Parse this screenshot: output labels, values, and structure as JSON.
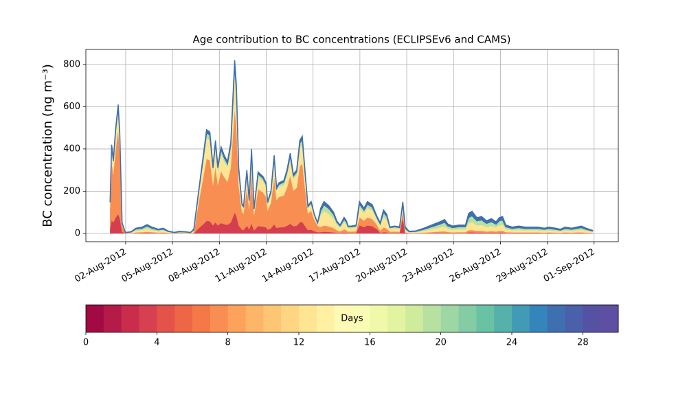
{
  "chart_data": {
    "type": "stacked-area",
    "title": "Age contribution to BC concentrations (ECLIPSEv6 and CAMS)",
    "y_label": "BC concentration (ng m⁻³)",
    "x": [
      1.0,
      1.1,
      1.21,
      1.36,
      1.52,
      1.62,
      1.77,
      1.98,
      2.34,
      2.65,
      3.06,
      3.37,
      3.68,
      4.09,
      4.4,
      4.71,
      5.12,
      5.43,
      5.84,
      6.15,
      6.36,
      6.67,
      6.97,
      7.18,
      7.39,
      7.59,
      7.75,
      7.9,
      8.11,
      8.31,
      8.52,
      8.73,
      8.98,
      9.09,
      9.24,
      9.45,
      9.55,
      9.76,
      9.91,
      10.06,
      10.22,
      10.48,
      10.79,
      10.99,
      11.09,
      11.3,
      11.51,
      11.66,
      11.82,
      12.13,
      12.33,
      12.54,
      12.74,
      12.95,
      13.15,
      13.31,
      13.46,
      13.67,
      13.88,
      14.08,
      14.29,
      14.49,
      14.7,
      15.01,
      15.32,
      15.52,
      15.73,
      15.99,
      16.14,
      16.24,
      16.45,
      16.76,
      16.97,
      17.27,
      17.48,
      17.79,
      18.1,
      18.3,
      18.51,
      18.72,
      18.92,
      19.23,
      19.54,
      19.75,
      19.9,
      20.16,
      20.57,
      21.09,
      21.6,
      22.12,
      22.43,
      22.63,
      22.94,
      23.35,
      23.76,
      23.97,
      24.18,
      24.49,
      24.8,
      25.11,
      25.42,
      25.72,
      25.93,
      26.14,
      26.34,
      26.75,
      27.17,
      27.58,
      27.99,
      28.4,
      28.81,
      29.12,
      29.53,
      29.84,
      30.15,
      30.56,
      30.87,
      31.18,
      31.49,
      31.9
    ],
    "series": [
      {
        "color": "#d53e4f",
        "values": [
          22,
          63,
          52,
          75,
          92,
          72,
          8,
          0,
          0,
          1,
          2,
          2,
          2,
          1,
          1,
          1,
          0,
          0,
          0,
          0,
          1,
          24,
          44,
          59,
          58,
          38,
          53,
          38,
          49,
          44,
          41,
          52,
          98,
          84,
          37,
          17,
          16,
          36,
          19,
          48,
          14,
          35,
          32,
          29,
          18,
          24,
          44,
          26,
          29,
          30,
          36,
          46,
          34,
          36,
          53,
          55,
          38,
          16,
          18,
          11,
          6,
          6,
          8,
          7,
          5,
          3,
          2,
          4,
          3,
          2,
          2,
          2,
          38,
          30,
          38,
          34,
          20,
          3,
          6,
          5,
          2,
          2,
          2,
          75,
          2,
          1,
          1,
          1,
          2,
          3,
          3,
          2,
          2,
          2,
          2,
          5,
          5,
          4,
          4,
          3,
          4,
          3,
          4,
          4,
          2,
          2,
          2,
          2,
          2,
          2,
          1,
          2,
          1,
          1,
          2,
          1,
          2,
          2,
          1,
          1
        ]
      },
      {
        "color": "#f98e52",
        "values": [
          98,
          273,
          228,
          325,
          396,
          312,
          32,
          1,
          1,
          4,
          4,
          6,
          4,
          3,
          4,
          2,
          1,
          2,
          1,
          1,
          3,
          120,
          222,
          294,
          288,
          192,
          264,
          192,
          246,
          222,
          204,
          258,
          492,
          420,
          186,
          84,
          78,
          180,
          96,
          240,
          72,
          174,
          162,
          144,
          90,
          120,
          222,
          132,
          144,
          150,
          180,
          228,
          168,
          180,
          264,
          276,
          192,
          78,
          90,
          54,
          30,
          24,
          30,
          26,
          20,
          12,
          8,
          15,
          12,
          7,
          7,
          8,
          38,
          30,
          38,
          34,
          20,
          10,
          22,
          18,
          6,
          7,
          6,
          30,
          3,
          1,
          1,
          3,
          4,
          6,
          7,
          5,
          3,
          4,
          4,
          10,
          11,
          8,
          8,
          6,
          7,
          6,
          8,
          8,
          4,
          3,
          3,
          3,
          3,
          3,
          3,
          3,
          3,
          2,
          3,
          3,
          3,
          3,
          3,
          1
        ]
      },
      {
        "color": "#fee593",
        "values": [
          22,
          63,
          52,
          75,
          92,
          72,
          8,
          2,
          3,
          9,
          10,
          15,
          10,
          7,
          9,
          4,
          2,
          3,
          3,
          2,
          7,
          40,
          74,
          98,
          96,
          64,
          88,
          64,
          82,
          74,
          68,
          86,
          164,
          140,
          62,
          28,
          26,
          60,
          32,
          80,
          24,
          58,
          54,
          48,
          30,
          40,
          74,
          44,
          48,
          50,
          60,
          76,
          56,
          60,
          88,
          92,
          64,
          26,
          30,
          18,
          10,
          54,
          68,
          59,
          45,
          27,
          18,
          34,
          27,
          16,
          16,
          18,
          45,
          36,
          45,
          41,
          24,
          23,
          50,
          41,
          14,
          16,
          14,
          30,
          11,
          3,
          4,
          9,
          14,
          19,
          23,
          16,
          12,
          14,
          14,
          33,
          37,
          26,
          28,
          21,
          24,
          19,
          26,
          28,
          14,
          10,
          12,
          10,
          10,
          10,
          9,
          10,
          9,
          7,
          10,
          9,
          10,
          12,
          9,
          5
        ]
      },
      {
        "color": "#b7e1a1",
        "values": [
          5,
          13,
          11,
          15,
          18,
          14,
          2,
          1,
          3,
          7,
          9,
          13,
          9,
          6,
          7,
          3,
          1,
          3,
          3,
          1,
          6,
          10,
          19,
          25,
          24,
          16,
          22,
          16,
          21,
          19,
          17,
          22,
          41,
          35,
          16,
          7,
          7,
          15,
          8,
          20,
          6,
          15,
          14,
          12,
          8,
          10,
          19,
          11,
          12,
          13,
          15,
          19,
          14,
          15,
          22,
          23,
          16,
          7,
          8,
          5,
          3,
          24,
          30,
          26,
          20,
          12,
          8,
          15,
          12,
          7,
          7,
          8,
          18,
          14,
          18,
          16,
          10,
          10,
          22,
          18,
          6,
          7,
          6,
          8,
          9,
          3,
          4,
          7,
          12,
          16,
          20,
          13,
          11,
          12,
          12,
          28,
          31,
          22,
          24,
          18,
          21,
          16,
          22,
          24,
          12,
          9,
          11,
          9,
          9,
          9,
          7,
          9,
          7,
          6,
          9,
          7,
          9,
          11,
          7,
          5
        ]
      },
      {
        "color": "#3e6fb0",
        "values": [
          3,
          8,
          7,
          10,
          12,
          10,
          1,
          1,
          1,
          4,
          5,
          6,
          5,
          3,
          4,
          2,
          1,
          2,
          1,
          1,
          3,
          6,
          11,
          15,
          14,
          10,
          13,
          10,
          12,
          11,
          10,
          13,
          25,
          21,
          9,
          4,
          4,
          9,
          5,
          12,
          4,
          9,
          8,
          7,
          5,
          6,
          11,
          7,
          7,
          8,
          9,
          11,
          8,
          9,
          13,
          14,
          10,
          4,
          5,
          3,
          2,
          12,
          15,
          13,
          10,
          6,
          4,
          8,
          6,
          3,
          3,
          4,
          12,
          10,
          12,
          11,
          6,
          5,
          11,
          9,
          3,
          3,
          3,
          7,
          6,
          2,
          2,
          5,
          8,
          11,
          13,
          9,
          7,
          8,
          8,
          19,
          21,
          15,
          16,
          12,
          14,
          11,
          15,
          16,
          8,
          6,
          7,
          6,
          6,
          6,
          5,
          6,
          5,
          4,
          6,
          5,
          6,
          7,
          5,
          3
        ]
      }
    ],
    "xlim": [
      -0.55,
      33.55
    ],
    "xticks": [
      {
        "value": 2,
        "label": "02-Aug-2012"
      },
      {
        "value": 5,
        "label": "05-Aug-2012"
      },
      {
        "value": 8,
        "label": "08-Aug-2012"
      },
      {
        "value": 11,
        "label": "11-Aug-2012"
      },
      {
        "value": 14,
        "label": "14-Aug-2012"
      },
      {
        "value": 17,
        "label": "17-Aug-2012"
      },
      {
        "value": 20,
        "label": "20-Aug-2012"
      },
      {
        "value": 23,
        "label": "23-Aug-2012"
      },
      {
        "value": 26,
        "label": "26-Aug-2012"
      },
      {
        "value": 29,
        "label": "29-Aug-2012"
      },
      {
        "value": 32,
        "label": "01-Sep-2012"
      }
    ],
    "ylim": [
      -39,
      871
    ],
    "yticks": [
      0,
      200,
      400,
      600,
      800
    ],
    "grid": true,
    "colorbar": {
      "label": "Days",
      "lim": [
        0,
        30
      ],
      "ticks": [
        0,
        4,
        8,
        12,
        16,
        20,
        24,
        28
      ],
      "colors": [
        "#a20a44",
        "#b51b48",
        "#c92d4b",
        "#d7404e",
        "#e3534a",
        "#ed6645",
        "#f57948",
        "#f98e52",
        "#fca25d",
        "#fdb567",
        "#fdc675",
        "#fed683",
        "#fee593",
        "#fff0a3",
        "#fffab6",
        "#f9fcb5",
        "#f0f9aa",
        "#e3f4a0",
        "#cfeb9c",
        "#b7e1a1",
        "#9dd7a4",
        "#83cca5",
        "#6ac2a5",
        "#56b1ab",
        "#439ab4",
        "#3584bb",
        "#3e70b1",
        "#4a60aa",
        "#5652a3",
        "#5e4fa2"
      ]
    }
  }
}
